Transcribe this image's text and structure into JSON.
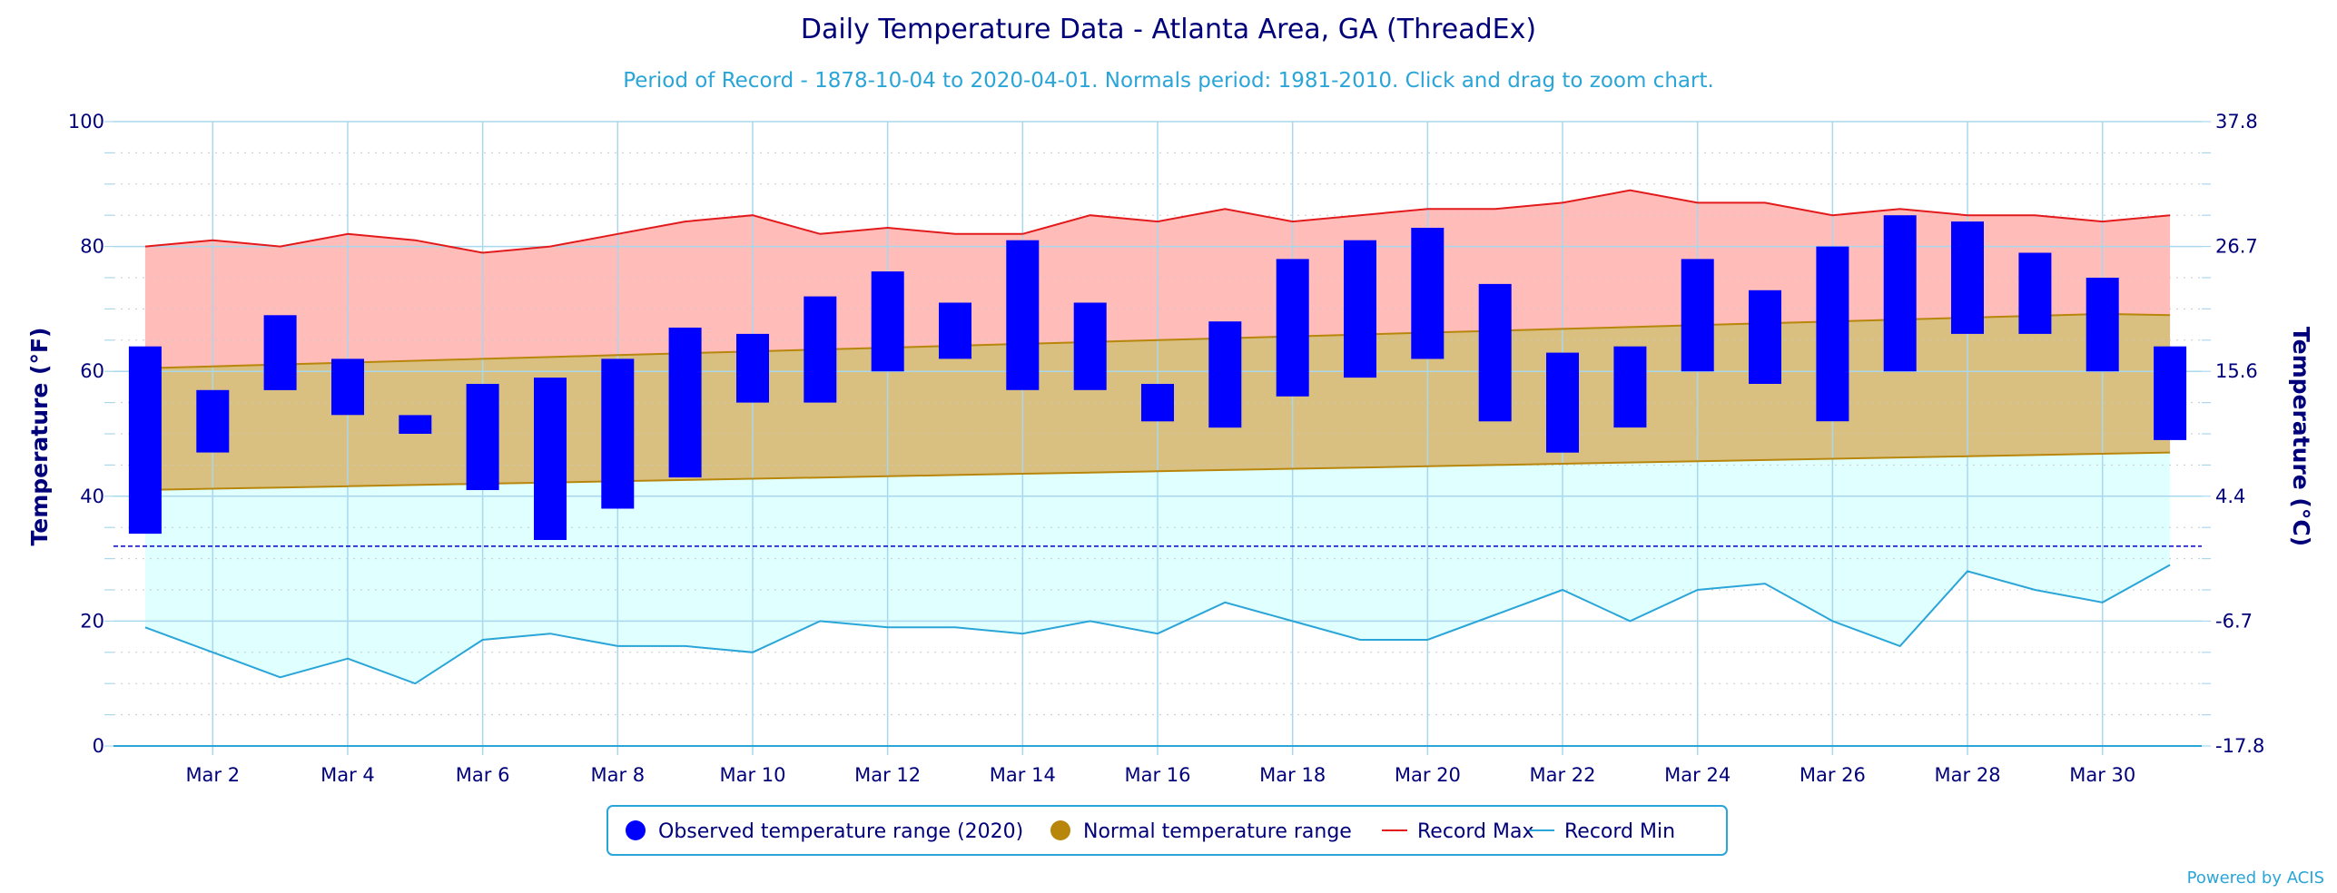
{
  "chart_data": {
    "type": "bar",
    "title": "Daily Temperature Data - Atlanta Area, GA (ThreadEx)",
    "subtitle": "Period of Record - 1878-10-04 to 2020-04-01. Normals period: 1981-2010. Click and drag to zoom chart.",
    "ylabel": "Temperature (°F)",
    "ylabel_right": "Temperature (°C)",
    "ylim": [
      0,
      100
    ],
    "y_ticks": [
      "0",
      "20",
      "40",
      "60",
      "80",
      "100"
    ],
    "y_ticks_right": [
      "-17.8",
      "-6.7",
      "4.4",
      "15.6",
      "26.7",
      "37.8"
    ],
    "freezing_line": 32,
    "x_tick_labels": [
      "Mar 2",
      "Mar 4",
      "Mar 6",
      "Mar 8",
      "Mar 10",
      "Mar 12",
      "Mar 14",
      "Mar 16",
      "Mar 18",
      "Mar 20",
      "Mar 22",
      "Mar 24",
      "Mar 26",
      "Mar 28",
      "Mar 30"
    ],
    "days": [
      1,
      2,
      3,
      4,
      5,
      6,
      7,
      8,
      9,
      10,
      11,
      12,
      13,
      14,
      15,
      16,
      17,
      18,
      19,
      20,
      21,
      22,
      23,
      24,
      25,
      26,
      27,
      28,
      29,
      30,
      31
    ],
    "series": [
      {
        "name": "Observed temperature range (2020)",
        "color": "#0000ff",
        "low": [
          34,
          47,
          57,
          53,
          50,
          41,
          33,
          38,
          43,
          55,
          55,
          60,
          62,
          57,
          57,
          52,
          51,
          56,
          59,
          62,
          52,
          47,
          51,
          60,
          58,
          52,
          60,
          66,
          66,
          60,
          49
        ],
        "high": [
          64,
          57,
          69,
          62,
          53,
          58,
          59,
          62,
          67,
          66,
          72,
          76,
          71,
          81,
          71,
          58,
          68,
          78,
          81,
          83,
          74,
          63,
          64,
          78,
          73,
          80,
          85,
          84,
          79,
          75,
          64
        ]
      },
      {
        "name": "Normal temperature range",
        "color": "#b8860b",
        "low": [
          41,
          41.2,
          41.4,
          41.6,
          41.8,
          42,
          42.2,
          42.4,
          42.6,
          42.8,
          43,
          43.2,
          43.4,
          43.6,
          43.8,
          44,
          44.2,
          44.4,
          44.6,
          44.8,
          45,
          45.2,
          45.4,
          45.6,
          45.8,
          46,
          46.2,
          46.4,
          46.6,
          46.8,
          47
        ],
        "high": [
          60.5,
          60.8,
          61.1,
          61.4,
          61.7,
          62,
          62.3,
          62.6,
          62.9,
          63.2,
          63.5,
          63.8,
          64.1,
          64.4,
          64.7,
          65,
          65.3,
          65.6,
          65.9,
          66.2,
          66.5,
          66.8,
          67.1,
          67.4,
          67.7,
          68,
          68.3,
          68.6,
          68.9,
          69.2,
          69
        ]
      },
      {
        "name": "Record Max",
        "color": "#e31a1c",
        "values": [
          80,
          81,
          80,
          82,
          81,
          79,
          80,
          82,
          84,
          85,
          82,
          83,
          82,
          82,
          85,
          84,
          86,
          84,
          85,
          86,
          86,
          87,
          89,
          87,
          87,
          85,
          86,
          85,
          85,
          84,
          85
        ]
      },
      {
        "name": "Record Min",
        "color": "#2aa5d8",
        "values": [
          19,
          15,
          11,
          14,
          10,
          17,
          18,
          16,
          16,
          15,
          20,
          19,
          19,
          18,
          20,
          18,
          23,
          20,
          17,
          17,
          21,
          25,
          20,
          25,
          26,
          20,
          16,
          28,
          25,
          23,
          29
        ]
      }
    ],
    "legend_position": "bottom-center",
    "grid": true,
    "credit": "Powered by ACIS"
  }
}
